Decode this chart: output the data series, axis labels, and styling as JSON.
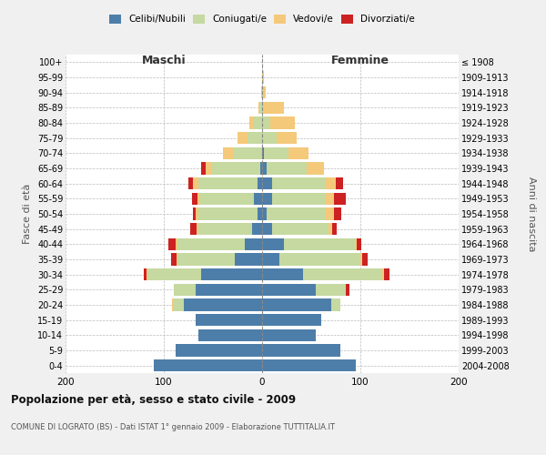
{
  "age_groups": [
    "0-4",
    "5-9",
    "10-14",
    "15-19",
    "20-24",
    "25-29",
    "30-34",
    "35-39",
    "40-44",
    "45-49",
    "50-54",
    "55-59",
    "60-64",
    "65-69",
    "70-74",
    "75-79",
    "80-84",
    "85-89",
    "90-94",
    "95-99",
    "100+"
  ],
  "year_labels": [
    "2004-2008",
    "1999-2003",
    "1994-1998",
    "1989-1993",
    "1984-1988",
    "1979-1983",
    "1974-1978",
    "1969-1973",
    "1964-1968",
    "1959-1963",
    "1954-1958",
    "1949-1953",
    "1944-1948",
    "1939-1943",
    "1934-1938",
    "1929-1933",
    "1924-1928",
    "1919-1923",
    "1914-1918",
    "1909-1913",
    "≤ 1908"
  ],
  "male_celibe": [
    110,
    88,
    65,
    68,
    80,
    68,
    62,
    28,
    18,
    10,
    5,
    8,
    5,
    2,
    0,
    0,
    0,
    0,
    0,
    0,
    0
  ],
  "male_coniugato": [
    0,
    0,
    0,
    0,
    10,
    22,
    55,
    58,
    68,
    55,
    60,
    55,
    60,
    50,
    30,
    15,
    8,
    3,
    1,
    0,
    0
  ],
  "male_vedovo": [
    0,
    0,
    0,
    0,
    2,
    0,
    1,
    1,
    2,
    2,
    3,
    3,
    5,
    5,
    10,
    10,
    5,
    1,
    0,
    0,
    0
  ],
  "male_divorziato": [
    0,
    0,
    0,
    0,
    0,
    0,
    2,
    6,
    7,
    6,
    2,
    5,
    5,
    5,
    0,
    0,
    0,
    0,
    0,
    0,
    0
  ],
  "female_celibe": [
    95,
    80,
    55,
    60,
    70,
    55,
    42,
    18,
    22,
    10,
    5,
    10,
    10,
    5,
    2,
    0,
    0,
    0,
    0,
    0,
    0
  ],
  "female_coniugata": [
    0,
    0,
    0,
    0,
    10,
    30,
    80,
    82,
    72,
    58,
    60,
    55,
    55,
    40,
    25,
    15,
    8,
    2,
    1,
    0,
    0
  ],
  "female_vedova": [
    0,
    0,
    0,
    0,
    0,
    0,
    2,
    2,
    2,
    3,
    8,
    8,
    10,
    18,
    20,
    20,
    25,
    20,
    3,
    2,
    0
  ],
  "female_divorziata": [
    0,
    0,
    0,
    0,
    0,
    4,
    6,
    5,
    5,
    5,
    8,
    12,
    7,
    0,
    0,
    0,
    0,
    0,
    0,
    0,
    0
  ],
  "color_celibe": "#4d7eaa",
  "color_coniugato": "#c5d9a0",
  "color_vedovo": "#f5c97a",
  "color_divorziato": "#cc2222",
  "title": "Popolazione per età, sesso e stato civile - 2009",
  "subtitle": "COMUNE DI LOGRATO (BS) - Dati ISTAT 1° gennaio 2009 - Elaborazione TUTTITALIA.IT",
  "xlabel_left": "Maschi",
  "xlabel_right": "Femmine",
  "ylabel_left": "Fasce di età",
  "ylabel_right": "Anni di nascita",
  "xlim": 200,
  "bg_color": "#f0f0f0",
  "plot_bg": "#ffffff",
  "legend_labels": [
    "Celibi/Nubili",
    "Coniugati/e",
    "Vedovi/e",
    "Divorziati/e"
  ]
}
